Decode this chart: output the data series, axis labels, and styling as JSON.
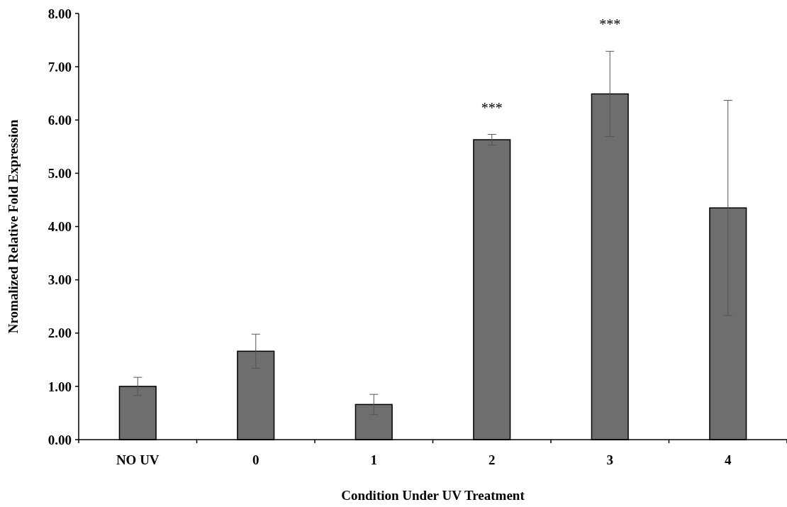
{
  "chart_data": {
    "type": "bar",
    "xlabel": "Condition Under UV Treatment",
    "ylabel": "Nromalized Relative Fold Expression",
    "categories": [
      "NO UV",
      "0",
      "1",
      "2",
      "3",
      "4"
    ],
    "values": [
      1.0,
      1.66,
      0.66,
      5.63,
      6.49,
      4.35
    ],
    "errors": [
      0.17,
      0.32,
      0.19,
      0.1,
      0.8,
      2.02
    ],
    "color": "#6e6e6e",
    "ylim": [
      0,
      8
    ],
    "yticks": [
      {
        "value": 0,
        "label": "0.00"
      },
      {
        "value": 1,
        "label": "1.00"
      },
      {
        "value": 2,
        "label": "2.00"
      },
      {
        "value": 3,
        "label": "3.00"
      },
      {
        "value": 4,
        "label": "4.00"
      },
      {
        "value": 5,
        "label": "5.00"
      },
      {
        "value": 6,
        "label": "6.00"
      },
      {
        "value": 7,
        "label": "7.00"
      },
      {
        "value": 8,
        "label": "8.00"
      }
    ],
    "grid": false,
    "annotations": [
      {
        "text": "***",
        "x": "2",
        "y": 5.73
      },
      {
        "text": "***",
        "x": "3",
        "y": 7.29
      }
    ]
  }
}
